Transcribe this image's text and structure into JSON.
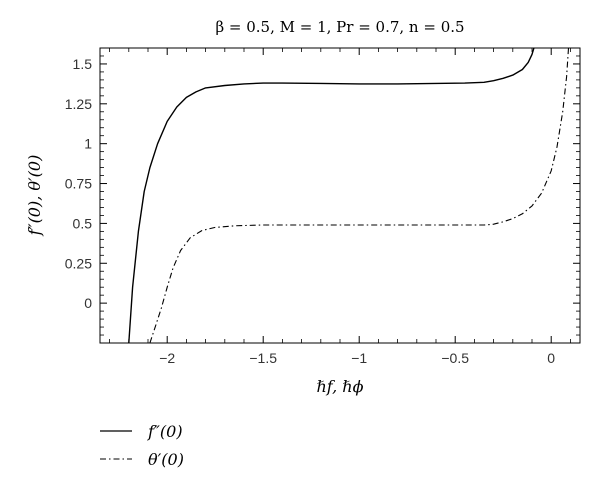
{
  "chart_data": {
    "type": "line",
    "title": "β = 0.5, M = 1, Pr = 0.7, n = 0.5",
    "xlabel": "ℏf, ℏϕ",
    "ylabel": "f″(0), θ′(0)",
    "xlim": [
      -2.35,
      0.15
    ],
    "ylim": [
      -0.25,
      1.6
    ],
    "xticks": [
      -2,
      -1.5,
      -1,
      -0.5,
      0
    ],
    "xtick_labels": [
      "−2",
      "−1.5",
      "−1",
      "−0.5",
      "0"
    ],
    "yticks": [
      0,
      0.25,
      0.5,
      0.75,
      1,
      1.25,
      1.5
    ],
    "ytick_labels": [
      "0",
      "0.25",
      "0.5",
      "0.75",
      "1",
      "1.25",
      "1.5"
    ],
    "grid": false,
    "legend_position": "below-left",
    "series": [
      {
        "name": "f″(0)",
        "style": "solid",
        "color": "#000000",
        "x": [
          -2.2,
          -2.18,
          -2.15,
          -2.12,
          -2.09,
          -2.05,
          -2.0,
          -1.95,
          -1.9,
          -1.85,
          -1.8,
          -1.7,
          -1.6,
          -1.5,
          -1.4,
          -1.2,
          -1.0,
          -0.8,
          -0.6,
          -0.45,
          -0.35,
          -0.3,
          -0.25,
          -0.2,
          -0.15,
          -0.12,
          -0.1,
          -0.09
        ],
        "y": [
          -0.25,
          0.1,
          0.45,
          0.7,
          0.85,
          1.0,
          1.14,
          1.23,
          1.29,
          1.325,
          1.35,
          1.365,
          1.375,
          1.38,
          1.38,
          1.378,
          1.375,
          1.375,
          1.378,
          1.38,
          1.385,
          1.395,
          1.41,
          1.43,
          1.465,
          1.51,
          1.56,
          1.6
        ]
      },
      {
        "name": "θ′(0)",
        "style": "dashdot",
        "color": "#000000",
        "x": [
          -2.09,
          -2.06,
          -2.03,
          -2.0,
          -1.97,
          -1.93,
          -1.88,
          -1.82,
          -1.75,
          -1.65,
          -1.5,
          -1.3,
          -1.0,
          -0.7,
          -0.5,
          -0.35,
          -0.3,
          -0.25,
          -0.2,
          -0.15,
          -0.1,
          -0.05,
          0.0,
          0.03,
          0.06,
          0.08,
          0.09
        ],
        "y": [
          -0.25,
          -0.14,
          -0.03,
          0.1,
          0.22,
          0.33,
          0.41,
          0.455,
          0.475,
          0.485,
          0.49,
          0.49,
          0.49,
          0.49,
          0.49,
          0.49,
          0.495,
          0.51,
          0.53,
          0.56,
          0.61,
          0.69,
          0.83,
          0.98,
          1.2,
          1.42,
          1.6
        ]
      }
    ]
  }
}
